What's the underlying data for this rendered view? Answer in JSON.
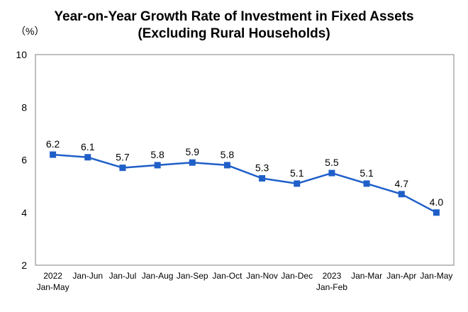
{
  "title_line1": "Year-on-Year Growth Rate of Investment in Fixed Assets",
  "title_line2": "(Excluding Rural Households)",
  "unit_label": "（%）",
  "chart_data": {
    "type": "line",
    "title": "Year-on-Year Growth Rate of Investment in Fixed Assets (Excluding Rural Households)",
    "ylabel": "（%）",
    "xlabel": "",
    "ylim": [
      2,
      10
    ],
    "yticks": [
      2,
      4,
      6,
      8,
      10
    ],
    "categories": [
      [
        "2022",
        "Jan-May"
      ],
      [
        "Jan-Jun"
      ],
      [
        "Jan-Jul"
      ],
      [
        "Jan-Aug"
      ],
      [
        "Jan-Sep"
      ],
      [
        "Jan-Oct"
      ],
      [
        "Jan-Nov"
      ],
      [
        "Jan-Dec"
      ],
      [
        "2023",
        "Jan-Feb"
      ],
      [
        "Jan-Mar"
      ],
      [
        "Jan-Apr"
      ],
      [
        "Jan-May"
      ]
    ],
    "values": [
      6.2,
      6.1,
      5.7,
      5.8,
      5.9,
      5.8,
      5.3,
      5.1,
      5.5,
      5.1,
      4.7,
      4.0
    ],
    "grid": false,
    "legend": "none",
    "line_color": "#1F5FC8"
  }
}
